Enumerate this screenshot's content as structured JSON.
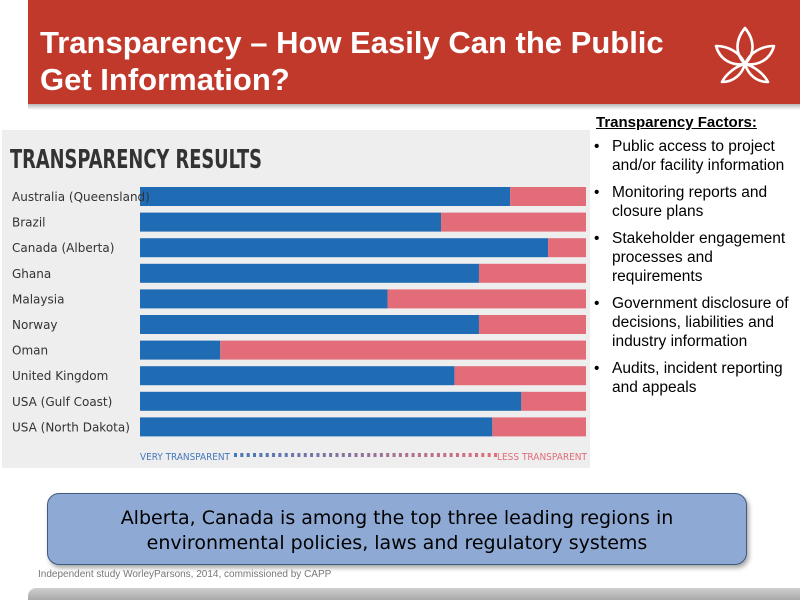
{
  "header": {
    "title": "Transparency – How Easily Can the Public Get Information?",
    "logo_icon": "lotus-logo-icon"
  },
  "colors": {
    "header_red": "#c0392b",
    "transparent_blue": "#1f6cb5",
    "less_transparent_pink": "#e26c78",
    "callout_blue": "#8eaad4"
  },
  "chart_data": {
    "type": "bar",
    "orientation": "horizontal",
    "stacked": true,
    "title": "TRANSPARENCY RESULTS",
    "categories": [
      "Australia (Queensland)",
      "Brazil",
      "Canada (Alberta)",
      "Ghana",
      "Malaysia",
      "Norway",
      "Oman",
      "United Kingdom",
      "USA (Gulf Coast)",
      "USA (North Dakota)"
    ],
    "series": [
      {
        "name": "",
        "values": [
          0.83,
          0.675,
          0.915,
          0.76,
          0.555,
          0.76,
          0.18,
          0.705,
          0.855,
          0.79
        ],
        "color": "#1f6cb5"
      },
      {
        "name": "",
        "values": [
          0.17,
          0.325,
          0.085,
          0.24,
          0.445,
          0.24,
          0.82,
          0.295,
          0.145,
          0.21
        ],
        "color": "#e26c78"
      }
    ],
    "xlim": [
      0,
      1
    ],
    "axis_labels": {
      "left": "VERY TRANSPARENT",
      "right": "LESS TRANSPARENT"
    },
    "grid": false,
    "legend": "none"
  },
  "factors": {
    "title": "Transparency Factors:",
    "items": [
      "Public access to project and/or facility information",
      "Monitoring reports and closure plans",
      "Stakeholder engagement processes and requirements",
      "Government disclosure of decisions, liabilities and industry information",
      "Audits, incident reporting and appeals"
    ]
  },
  "callout": {
    "text": "Alberta, Canada is among the top three leading regions in environmental policies, laws and regulatory systems"
  },
  "source": "Independent study WorleyParsons, 2014, commissioned by CAPP"
}
